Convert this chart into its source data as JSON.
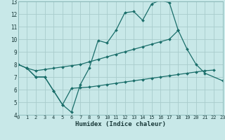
{
  "xlabel": "Humidex (Indice chaleur)",
  "background_color": "#c8e8e8",
  "grid_color": "#a8cccc",
  "line_color": "#1a6e6a",
  "xlim": [
    0,
    23
  ],
  "ylim": [
    4,
    13
  ],
  "xtick_vals": [
    0,
    1,
    2,
    3,
    4,
    5,
    6,
    7,
    8,
    9,
    10,
    11,
    12,
    13,
    14,
    15,
    16,
    17,
    18,
    19,
    20,
    21,
    22,
    23
  ],
  "ytick_vals": [
    4,
    5,
    6,
    7,
    8,
    9,
    10,
    11,
    12,
    13
  ],
  "line1_x": [
    0,
    1,
    2,
    3,
    4,
    5,
    6,
    7,
    8,
    9,
    10,
    11,
    12,
    13,
    14,
    15,
    16,
    17,
    18
  ],
  "line1_y": [
    8.0,
    7.7,
    7.0,
    7.0,
    5.9,
    4.8,
    4.2,
    6.4,
    7.7,
    9.9,
    9.7,
    10.7,
    12.1,
    12.2,
    11.5,
    12.8,
    13.1,
    12.9,
    10.7
  ],
  "line2_x": [
    0,
    1,
    2,
    3,
    4,
    5,
    6,
    7,
    8,
    9,
    10,
    11,
    12,
    13,
    14,
    15,
    16,
    17,
    18,
    19,
    20,
    21,
    23
  ],
  "line2_y": [
    8.0,
    7.7,
    7.5,
    7.6,
    7.7,
    7.8,
    7.9,
    8.0,
    8.2,
    8.4,
    8.6,
    8.8,
    9.0,
    9.2,
    9.4,
    9.6,
    9.8,
    10.0,
    10.7,
    9.2,
    8.0,
    7.3,
    6.7
  ],
  "line3_x": [
    1,
    2,
    3,
    4,
    5,
    6,
    7,
    8,
    9,
    10,
    11,
    12,
    13,
    14,
    15,
    16,
    17,
    18,
    19,
    20,
    21,
    22
  ],
  "line3_y": [
    7.7,
    7.0,
    7.0,
    5.9,
    4.8,
    6.1,
    6.15,
    6.2,
    6.3,
    6.4,
    6.5,
    6.6,
    6.7,
    6.8,
    6.9,
    7.0,
    7.1,
    7.2,
    7.3,
    7.4,
    7.5,
    7.55
  ]
}
